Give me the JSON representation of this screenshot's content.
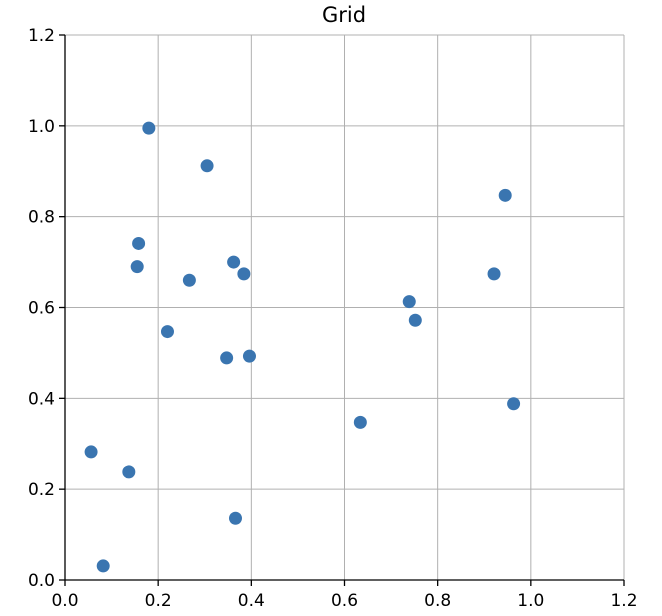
{
  "chart_data": {
    "type": "scatter",
    "title": "Grid",
    "xlabel": "",
    "ylabel": "",
    "xlim": [
      0.0,
      1.2
    ],
    "ylim": [
      0.0,
      1.2
    ],
    "grid": true,
    "x_ticks": [
      0.0,
      0.2,
      0.4,
      0.6,
      0.8,
      1.0,
      1.2
    ],
    "y_ticks": [
      0.0,
      0.2,
      0.4,
      0.6,
      0.8,
      1.0,
      1.2
    ],
    "x_tick_labels": [
      "0.0",
      "0.2",
      "0.4",
      "0.6",
      "0.8",
      "1.0",
      "1.2"
    ],
    "y_tick_labels": [
      "0.0",
      "0.2",
      "0.4",
      "0.6",
      "0.8",
      "1.0",
      "1.2"
    ],
    "series": [
      {
        "color": "#3a75b0",
        "points": [
          {
            "x": 0.18,
            "y": 0.995
          },
          {
            "x": 0.305,
            "y": 0.912
          },
          {
            "x": 0.945,
            "y": 0.847
          },
          {
            "x": 0.158,
            "y": 0.741
          },
          {
            "x": 0.155,
            "y": 0.69
          },
          {
            "x": 0.362,
            "y": 0.7
          },
          {
            "x": 0.384,
            "y": 0.674
          },
          {
            "x": 0.267,
            "y": 0.66
          },
          {
            "x": 0.921,
            "y": 0.674
          },
          {
            "x": 0.739,
            "y": 0.613
          },
          {
            "x": 0.752,
            "y": 0.572
          },
          {
            "x": 0.22,
            "y": 0.547
          },
          {
            "x": 0.347,
            "y": 0.489
          },
          {
            "x": 0.396,
            "y": 0.493
          },
          {
            "x": 0.963,
            "y": 0.388
          },
          {
            "x": 0.634,
            "y": 0.347
          },
          {
            "x": 0.056,
            "y": 0.282
          },
          {
            "x": 0.137,
            "y": 0.238
          },
          {
            "x": 0.366,
            "y": 0.136
          },
          {
            "x": 0.082,
            "y": 0.031
          }
        ]
      }
    ]
  }
}
